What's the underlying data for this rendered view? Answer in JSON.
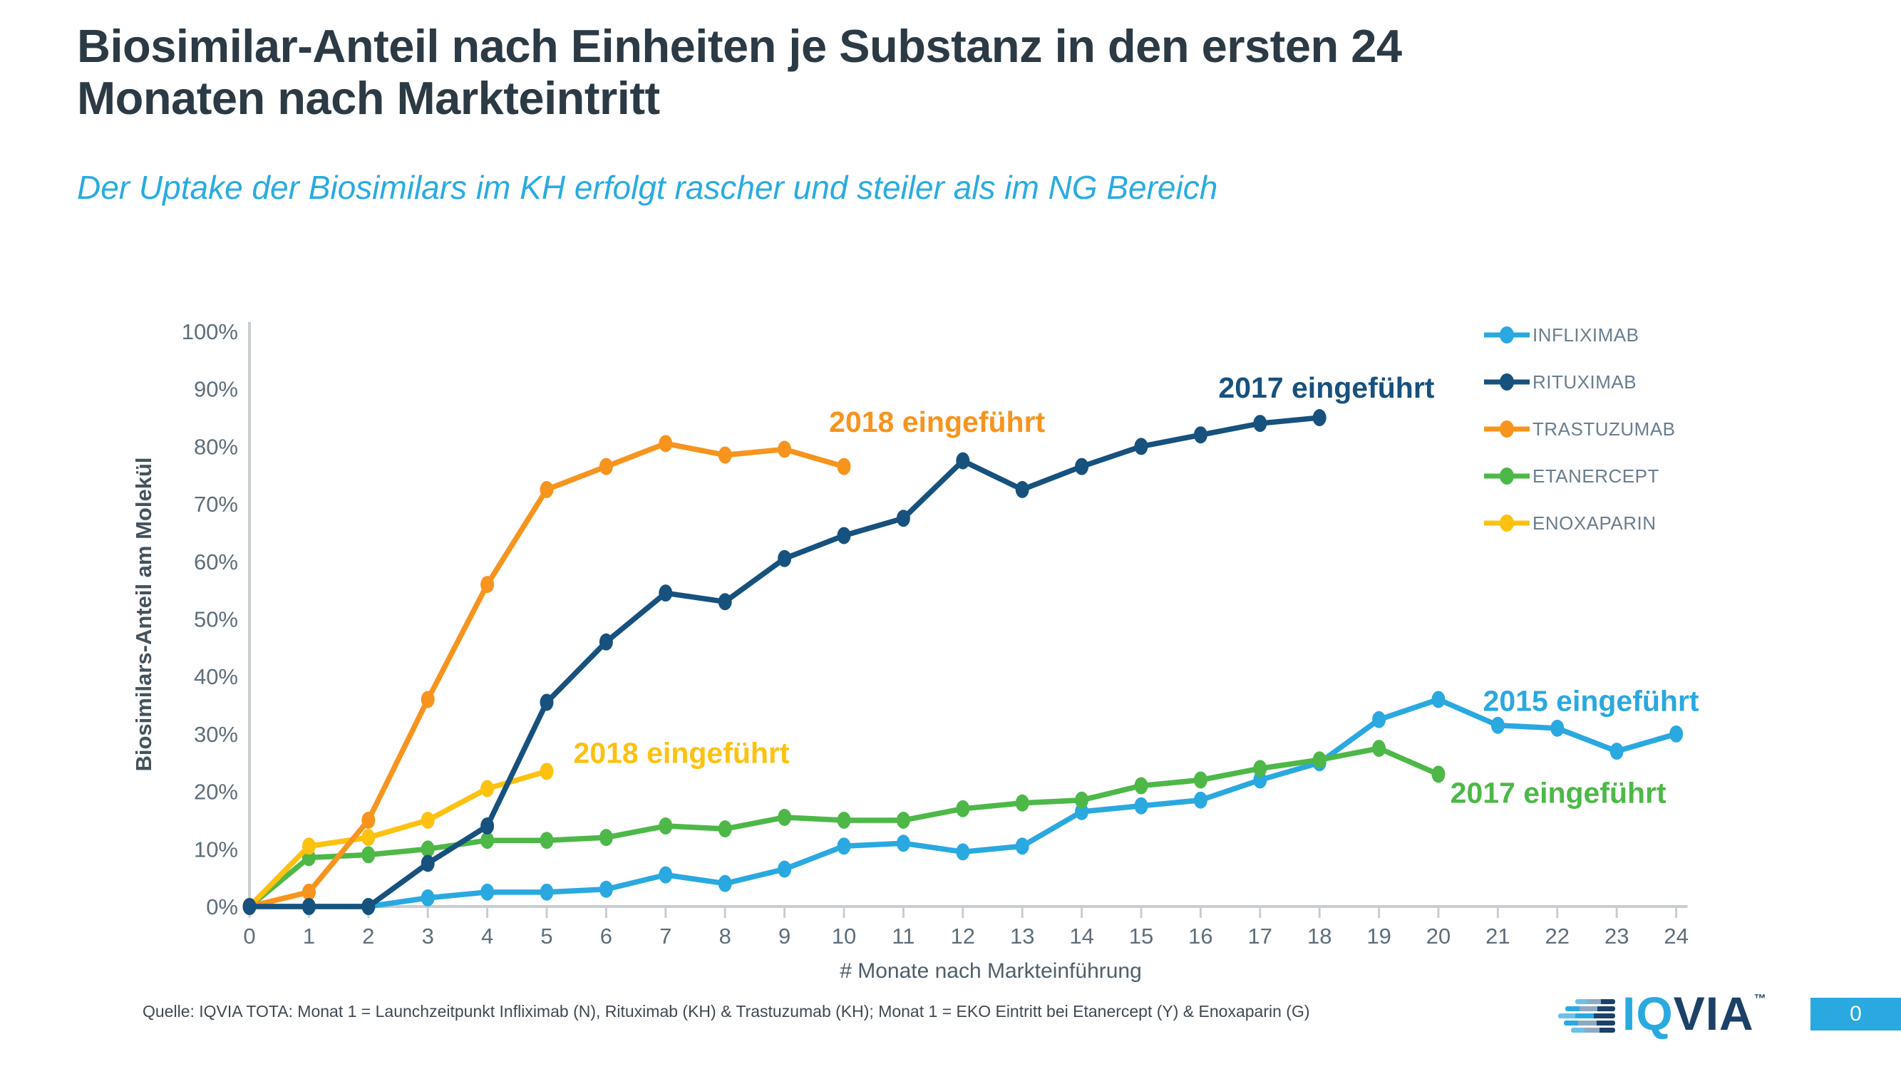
{
  "slide": {
    "title_lines": [
      "Biosimilar-Anteil nach Einheiten je Substanz in den ersten 24",
      "Monaten nach Markteintritt"
    ],
    "subtitle": "Der Uptake der Biosimilars im KH erfolgt rascher und steiler als im NG Bereich",
    "footer": "Quelle: IQVIA TOTA: Monat 1 = Launchzeitpunkt Infliximab (N), Rituximab (KH) & Trastuzumab (KH); Monat 1 = EKO Eintritt bei Etanercept (Y) & Enoxaparin (G)",
    "page_number": "0",
    "logo": {
      "iq": "IQ",
      "via": "VIA",
      "tm": "™"
    }
  },
  "colors": {
    "title": "#2B3A44",
    "subtitle": "#29ABE2",
    "axis_line": "#C8CDD2",
    "axis_text": "#5E6E7A",
    "axis_title_y": "#44525C",
    "axis_title_x": "#4E5F6B",
    "legend_text": "#6A7E8E",
    "footer": "#3F4952",
    "infliximab": "#2AA8E0",
    "rituximab": "#17517E",
    "trastuzumab": "#F7941E",
    "etanercept": "#4DB848",
    "enoxaparin": "#FDC110",
    "logo_cyan": "#29A9E0",
    "logo_navy": "#1B4168",
    "logo_slate": "#8FA9C0",
    "logo_lightblue": "#6CC1E8",
    "badge_bg": "#29A9E0",
    "badge_text": "#FFFFFF"
  },
  "legend": {
    "items": [
      {
        "label": "INFLIXIMAB",
        "color_key": "infliximab"
      },
      {
        "label": "RITUXIMAB",
        "color_key": "rituximab"
      },
      {
        "label": "TRASTUZUMAB",
        "color_key": "trastuzumab"
      },
      {
        "label": "ETANERCEPT",
        "color_key": "etanercept"
      },
      {
        "label": "ENOXAPARIN",
        "color_key": "enoxaparin"
      }
    ]
  },
  "chart_data": {
    "type": "line",
    "xlabel": "# Monate nach Markteinführung",
    "ylabel": "Biosimilars-Anteil am Molekül",
    "xlim": [
      0,
      24
    ],
    "ylim": [
      0,
      100
    ],
    "grid": false,
    "legend_position": "right-top",
    "x_tick_labels": [
      "0",
      "1",
      "2",
      "3",
      "4",
      "5",
      "6",
      "7",
      "8",
      "9",
      "10",
      "11",
      "12",
      "13",
      "14",
      "15",
      "16",
      "17",
      "18",
      "19",
      "20",
      "21",
      "22",
      "23",
      "24"
    ],
    "y_tick_labels": [
      "0%",
      "10%",
      "20%",
      "30%",
      "40%",
      "50%",
      "60%",
      "70%",
      "80%",
      "90%",
      "100%"
    ],
    "x": [
      0,
      1,
      2,
      3,
      4,
      5,
      6,
      7,
      8,
      9,
      10,
      11,
      12,
      13,
      14,
      15,
      16,
      17,
      18,
      19,
      20,
      21,
      22,
      23,
      24
    ],
    "series": [
      {
        "name": "INFLIXIMAB",
        "color_key": "infliximab",
        "values": [
          0,
          0,
          0,
          1.5,
          2.5,
          2.5,
          3,
          5.5,
          4,
          6.5,
          10.5,
          11,
          9.5,
          10.5,
          16.5,
          17.5,
          18.5,
          22,
          25,
          32.5,
          36,
          31.5,
          31,
          27,
          30
        ]
      },
      {
        "name": "RITUXIMAB",
        "color_key": "rituximab",
        "values": [
          0,
          0,
          0,
          7.5,
          14,
          35.5,
          46,
          54.5,
          53,
          60.5,
          64.5,
          67.5,
          77.5,
          72.5,
          76.5,
          80,
          82,
          84,
          85
        ]
      },
      {
        "name": "TRASTUZUMAB",
        "color_key": "trastuzumab",
        "values": [
          0,
          2.5,
          15,
          36,
          56,
          72.5,
          76.5,
          80.5,
          78.5,
          79.5,
          76.5
        ]
      },
      {
        "name": "ETANERCEPT",
        "color_key": "etanercept",
        "values": [
          0,
          8.5,
          9,
          10,
          11.5,
          11.5,
          12,
          14,
          13.5,
          15.5,
          15,
          15,
          17,
          18,
          18.5,
          21,
          22,
          24,
          25.5,
          27.5,
          23
        ]
      },
      {
        "name": "ENOXAPARIN",
        "color_key": "enoxaparin",
        "values": [
          0,
          10.5,
          12,
          15,
          20.5,
          23.5
        ]
      }
    ],
    "annotations": [
      {
        "text": "2018 eingeführt",
        "series": "TRASTUZUMAB",
        "color_key": "trastuzumab",
        "month": 9.75,
        "pct": 82.5
      },
      {
        "text": "2017 eingeführt",
        "series": "RITUXIMAB",
        "color_key": "rituximab",
        "month": 16.3,
        "pct": 88.5
      },
      {
        "text": "2018 eingeführt",
        "series": "ENOXAPARIN",
        "color_key": "enoxaparin",
        "month": 5.45,
        "pct": 25
      },
      {
        "text": "2015 eingeführt",
        "series": "INFLIXIMAB",
        "color_key": "infliximab",
        "month": 20.75,
        "pct": 34
      },
      {
        "text": "2017 eingeführt",
        "series": "ETANERCEPT",
        "color_key": "etanercept",
        "month": 20.2,
        "pct": 18
      }
    ]
  }
}
